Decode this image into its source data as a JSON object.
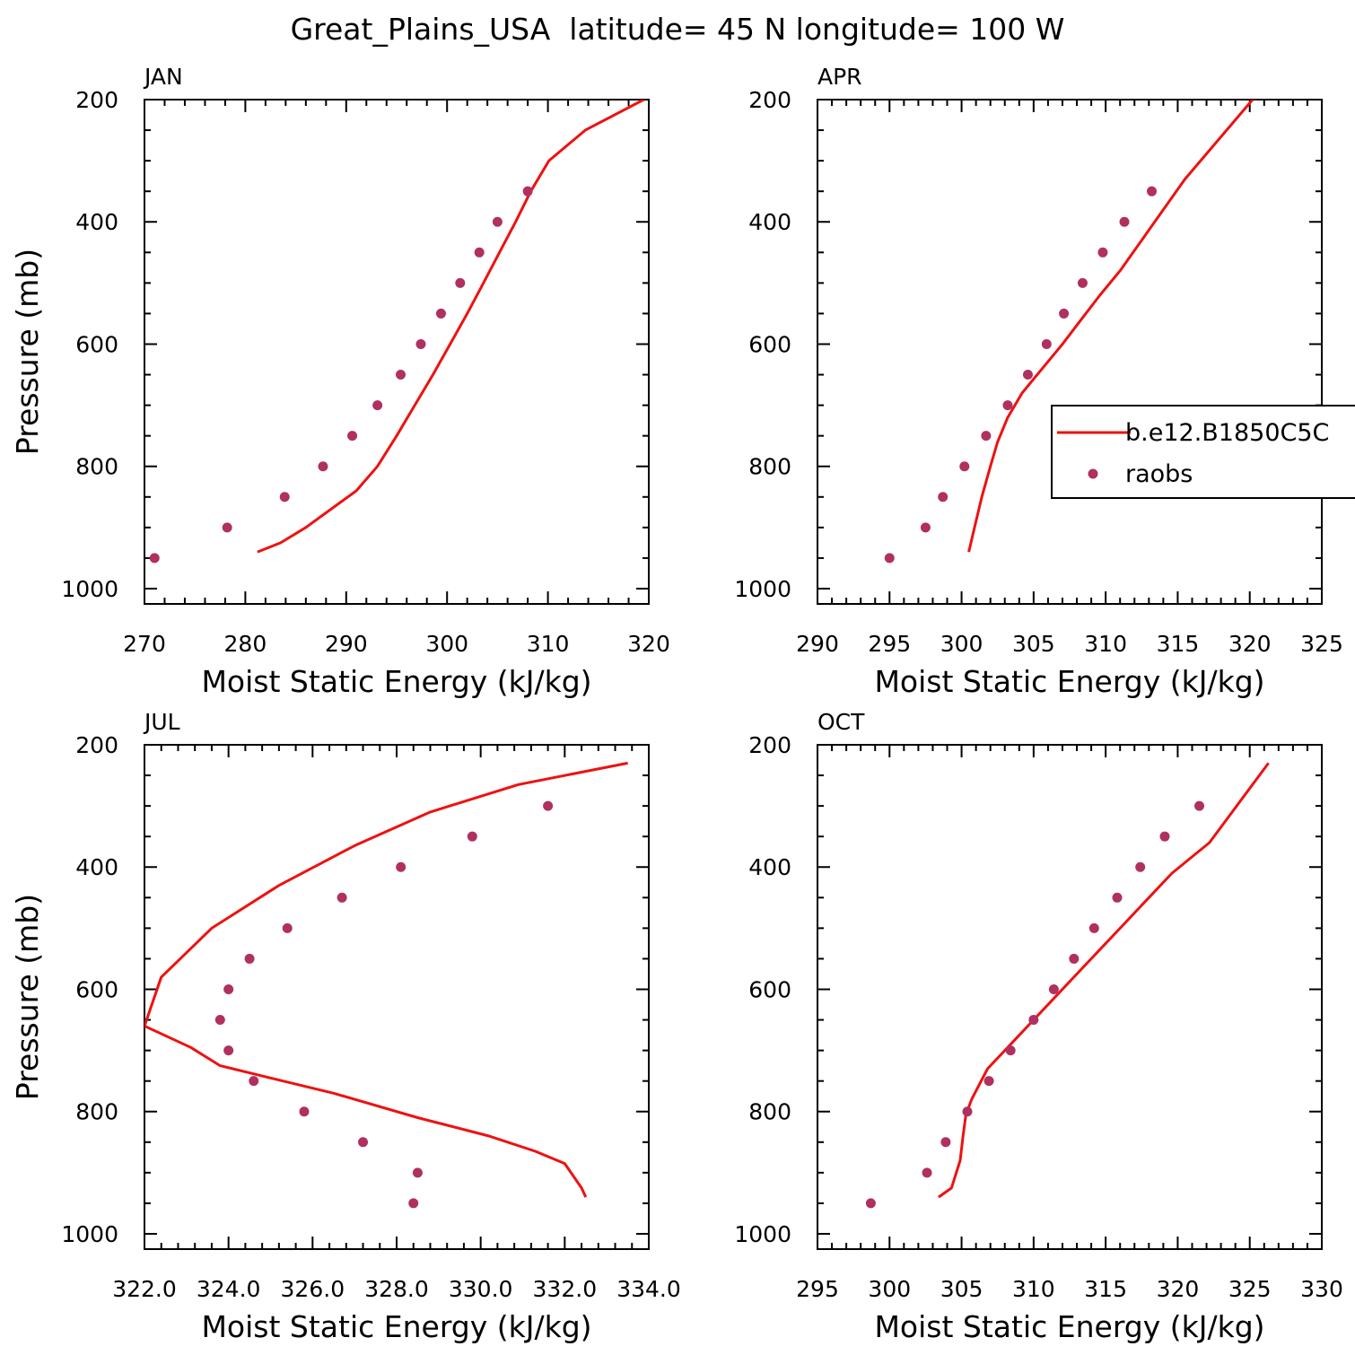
{
  "figure": {
    "title": "Great_Plains_USA  latitude= 45 N longitude= 100 W"
  },
  "colors": {
    "model_line": "#ee1111",
    "raobs_marker": "#b03060",
    "axes": "#000000"
  },
  "chart_data": [
    {
      "type": "line",
      "panel": "JAN",
      "title": "JAN",
      "xlabel": "Moist Static Energy (kJ/kg)",
      "ylabel": "Pressure (mb)",
      "xlim": [
        270,
        320
      ],
      "xticks": [
        270,
        280,
        290,
        300,
        310,
        320
      ],
      "xtick_labels": [
        "270",
        "280",
        "290",
        "300",
        "310",
        "320"
      ],
      "ylim": [
        200,
        1025
      ],
      "yticks": [
        200,
        400,
        600,
        800,
        1000
      ],
      "y_inverted": true,
      "series": [
        {
          "name": "",
          "kind": "line",
          "x": [
            281.2,
            283.5,
            286.0,
            288.5,
            291.0,
            293.1,
            295.0,
            296.8,
            298.6,
            300.3,
            302.0,
            303.6,
            305.2,
            306.8,
            308.3,
            310.1,
            313.7,
            319.5
          ],
          "y": [
            940,
            925,
            900,
            870,
            840,
            800,
            750,
            700,
            650,
            600,
            550,
            500,
            450,
            400,
            350,
            300,
            250,
            200
          ]
        },
        {
          "name": "",
          "kind": "scatter",
          "x": [
            271.0,
            278.2,
            283.9,
            287.7,
            290.6,
            293.1,
            295.4,
            297.4,
            299.4,
            301.3,
            303.2,
            305.0,
            308.0
          ],
          "y": [
            950,
            900,
            850,
            800,
            750,
            700,
            650,
            600,
            550,
            500,
            450,
            400,
            350
          ]
        }
      ]
    },
    {
      "type": "line",
      "panel": "APR",
      "title": "APR",
      "xlabel": "Moist Static Energy (kJ/kg)",
      "ylabel": "",
      "xlim": [
        290,
        325
      ],
      "xticks": [
        290,
        295,
        300,
        305,
        310,
        315,
        320,
        325
      ],
      "xtick_labels": [
        "290",
        "295",
        "300",
        "305",
        "310",
        "315",
        "320",
        "325"
      ],
      "ylim": [
        200,
        1025
      ],
      "yticks": [
        200,
        400,
        600,
        800,
        1000
      ],
      "y_inverted": true,
      "legend": {
        "position": "right",
        "entries": [
          "b.e12.B1850C5C",
          "raobs"
        ]
      },
      "series": [
        {
          "name": "b.e12.B1850C5C",
          "kind": "line",
          "x": [
            300.5,
            300.9,
            301.4,
            302.0,
            302.5,
            303.2,
            304.2,
            305.6,
            307.0,
            308.3,
            309.6,
            311.0,
            312.5,
            314.0,
            315.5,
            320.2
          ],
          "y": [
            940,
            900,
            850,
            800,
            760,
            720,
            680,
            640,
            600,
            560,
            520,
            480,
            430,
            380,
            330,
            200
          ]
        },
        {
          "name": "raobs",
          "kind": "scatter",
          "x": [
            295.0,
            297.5,
            298.7,
            300.2,
            301.7,
            303.2,
            304.6,
            305.9,
            307.1,
            308.4,
            309.8,
            311.3,
            313.2
          ],
          "y": [
            950,
            900,
            850,
            800,
            750,
            700,
            650,
            600,
            550,
            500,
            450,
            400,
            350
          ]
        }
      ]
    },
    {
      "type": "line",
      "panel": "JUL",
      "title": "JUL",
      "xlabel": "Moist Static Energy (kJ/kg)",
      "ylabel": "Pressure (mb)",
      "xlim": [
        322.0,
        334.0
      ],
      "xticks": [
        322.0,
        324.0,
        326.0,
        328.0,
        330.0,
        332.0,
        334.0
      ],
      "xtick_labels": [
        "322.0",
        "324.0",
        "326.0",
        "328.0",
        "330.0",
        "332.0",
        "334.0"
      ],
      "ylim": [
        200,
        1025
      ],
      "yticks": [
        200,
        400,
        600,
        800,
        1000
      ],
      "y_inverted": true,
      "series": [
        {
          "name": "",
          "kind": "line",
          "x": [
            332.5,
            332.4,
            332.0,
            331.3,
            330.2,
            328.5,
            326.5,
            325.0,
            323.8,
            323.1,
            322.0,
            322.4,
            323.6,
            325.2,
            327.0,
            328.8,
            330.9,
            333.5
          ],
          "y": [
            940,
            925,
            885,
            865,
            840,
            810,
            770,
            745,
            725,
            695,
            660,
            580,
            500,
            430,
            365,
            310,
            265,
            230
          ]
        },
        {
          "name": "",
          "kind": "scatter",
          "x": [
            328.4,
            328.5,
            327.2,
            325.8,
            324.6,
            324.0,
            323.8,
            324.0,
            324.5,
            325.4,
            326.7,
            328.1,
            329.8,
            331.6
          ],
          "y": [
            950,
            900,
            850,
            800,
            750,
            700,
            650,
            600,
            550,
            500,
            450,
            400,
            350,
            300
          ]
        }
      ]
    },
    {
      "type": "line",
      "panel": "OCT",
      "title": "OCT",
      "xlabel": "Moist Static Energy (kJ/kg)",
      "ylabel": "",
      "xlim": [
        295,
        330
      ],
      "xticks": [
        295,
        300,
        305,
        310,
        315,
        320,
        325,
        330
      ],
      "xtick_labels": [
        "295",
        "300",
        "305",
        "310",
        "315",
        "320",
        "325",
        "330"
      ],
      "ylim": [
        200,
        1025
      ],
      "yticks": [
        200,
        400,
        600,
        800,
        1000
      ],
      "y_inverted": true,
      "series": [
        {
          "name": "",
          "kind": "line",
          "x": [
            303.4,
            304.3,
            304.9,
            305.1,
            305.3,
            305.7,
            306.8,
            308.4,
            310.0,
            311.6,
            313.2,
            314.8,
            316.4,
            318.0,
            319.6,
            322.2,
            326.3
          ],
          "y": [
            940,
            925,
            880,
            840,
            805,
            780,
            730,
            690,
            650,
            610,
            570,
            530,
            490,
            450,
            410,
            360,
            230
          ]
        },
        {
          "name": "",
          "kind": "scatter",
          "x": [
            298.7,
            302.6,
            303.9,
            305.4,
            306.9,
            308.4,
            310.0,
            311.4,
            312.8,
            314.2,
            315.8,
            317.4,
            319.1,
            321.5
          ],
          "y": [
            950,
            900,
            850,
            800,
            750,
            700,
            650,
            600,
            550,
            500,
            450,
            400,
            350,
            300
          ]
        }
      ]
    }
  ]
}
